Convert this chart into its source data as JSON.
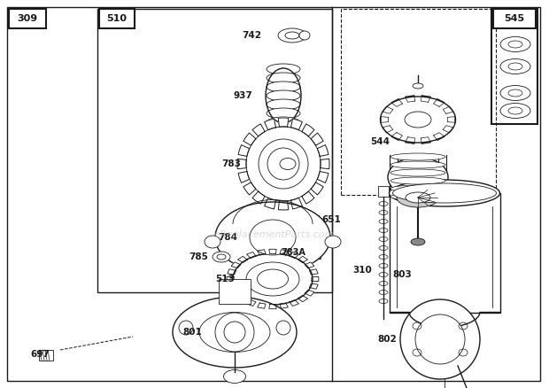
{
  "bg_color": "#ffffff",
  "lc": "#1a1a1a",
  "watermark": "eReplacementParts.com",
  "watermark_color": "#bbbbbb"
}
